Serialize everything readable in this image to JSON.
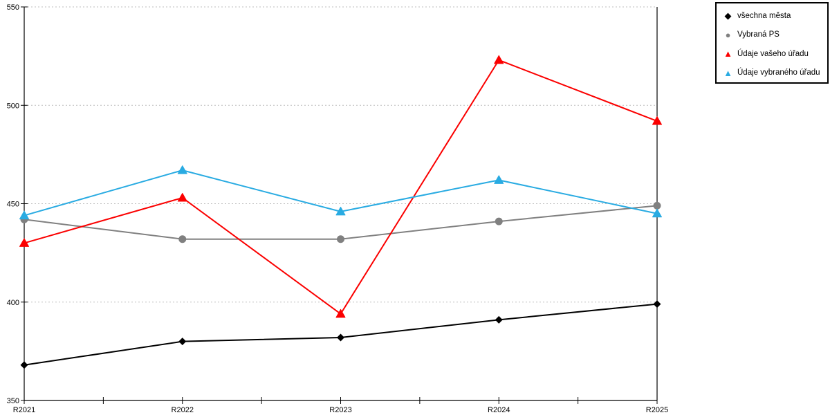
{
  "legend": {
    "items": [
      {
        "label": "všechna města",
        "marker": "diamond",
        "glyph": "◆",
        "color": "#000000"
      },
      {
        "label": "Vybraná PS",
        "marker": "circle",
        "glyph": "●",
        "color": "#808080"
      },
      {
        "label": "Údaje vašeho úřadu",
        "marker": "triangle",
        "glyph": "▲",
        "color": "#fb0000"
      },
      {
        "label": "Údaje vybraného úřadu",
        "marker": "triangle",
        "glyph": "▲",
        "color": "#29abe2"
      }
    ]
  },
  "chart_data": {
    "type": "line",
    "categories": [
      "R2021",
      "R2022",
      "R2023",
      "R2024",
      "R2025"
    ],
    "series": [
      {
        "name": "všechna města",
        "color": "#000000",
        "marker": "diamond",
        "values": [
          368,
          380,
          382,
          391,
          399
        ]
      },
      {
        "name": "Vybraná PS",
        "color": "#808080",
        "marker": "circle",
        "values": [
          442,
          432,
          432,
          441,
          449
        ]
      },
      {
        "name": "Údaje vašeho úřadu",
        "color": "#fb0000",
        "marker": "triangle",
        "values": [
          430,
          453,
          394,
          523,
          492
        ]
      },
      {
        "name": "Údaje vybraného úřadu",
        "color": "#29abe2",
        "marker": "triangle",
        "values": [
          444,
          467,
          446,
          462,
          445
        ]
      }
    ],
    "title": "",
    "xlabel": "",
    "ylabel": "",
    "ylim": [
      350,
      550
    ],
    "ytick_step": 50,
    "y_tick_labels": [
      "350",
      "400",
      "450",
      "500",
      "550"
    ],
    "grid": "horizontal-dotted",
    "gridline_color": "#bdbdbd",
    "axis_color": "#000000",
    "legend_position": "top-right"
  }
}
